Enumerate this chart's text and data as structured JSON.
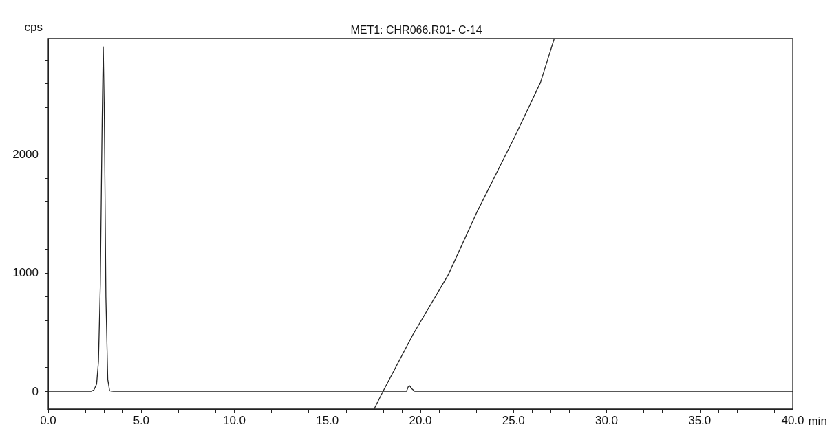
{
  "chart_data": {
    "type": "line",
    "title": "MET1: CHR066.R01- C-14",
    "xlabel": "min",
    "ylabel": "cps",
    "series": [
      {
        "color": "#222222",
        "x": [
          0,
          2.3,
          2.45,
          2.6,
          2.7,
          2.8,
          2.9,
          2.96,
          3.02,
          3.1,
          3.2,
          3.3,
          3.5,
          19.25,
          19.35,
          19.42,
          19.55,
          19.7,
          40
        ],
        "values": [
          0,
          0,
          10,
          60,
          250,
          900,
          2300,
          2910,
          2300,
          800,
          100,
          5,
          0,
          0,
          40,
          46,
          20,
          0,
          0
        ]
      },
      {
        "color": "#222222",
        "x": [
          17.51,
          17.99,
          19.6,
          21.5,
          23.05,
          25.05,
          26.45,
          27.19
        ],
        "values": [
          -150,
          0,
          480,
          986,
          1519,
          2145,
          2609,
          2980
        ]
      }
    ],
    "xlim": [
      0,
      40
    ],
    "ylim": [
      -150,
      2980
    ],
    "xticks": [
      {
        "value": 0,
        "label": "0.0"
      },
      {
        "value": 1,
        "label": null
      },
      {
        "value": 2,
        "label": null
      },
      {
        "value": 3,
        "label": null
      },
      {
        "value": 4,
        "label": null
      },
      {
        "value": 5,
        "label": "5.0"
      },
      {
        "value": 6,
        "label": null
      },
      {
        "value": 7,
        "label": null
      },
      {
        "value": 8,
        "label": null
      },
      {
        "value": 9,
        "label": null
      },
      {
        "value": 10,
        "label": "10.0"
      },
      {
        "value": 11,
        "label": null
      },
      {
        "value": 12,
        "label": null
      },
      {
        "value": 13,
        "label": null
      },
      {
        "value": 14,
        "label": null
      },
      {
        "value": 15,
        "label": "15.0"
      },
      {
        "value": 16,
        "label": null
      },
      {
        "value": 17,
        "label": null
      },
      {
        "value": 18,
        "label": null
      },
      {
        "value": 19,
        "label": null
      },
      {
        "value": 20,
        "label": "20.0"
      },
      {
        "value": 21,
        "label": null
      },
      {
        "value": 22,
        "label": null
      },
      {
        "value": 23,
        "label": null
      },
      {
        "value": 24,
        "label": null
      },
      {
        "value": 25,
        "label": "25.0"
      },
      {
        "value": 26,
        "label": null
      },
      {
        "value": 27,
        "label": null
      },
      {
        "value": 28,
        "label": null
      },
      {
        "value": 29,
        "label": null
      },
      {
        "value": 30,
        "label": "30.0"
      },
      {
        "value": 31,
        "label": null
      },
      {
        "value": 32,
        "label": null
      },
      {
        "value": 33,
        "label": null
      },
      {
        "value": 34,
        "label": null
      },
      {
        "value": 35,
        "label": "35.0"
      },
      {
        "value": 36,
        "label": null
      },
      {
        "value": 37,
        "label": null
      },
      {
        "value": 38,
        "label": null
      },
      {
        "value": 39,
        "label": null
      },
      {
        "value": 40,
        "label": "40.0"
      }
    ],
    "yticks": [
      0,
      {
        "value": 200,
        "label": null
      },
      {
        "value": 400,
        "label": null
      },
      {
        "value": 600,
        "label": null
      },
      {
        "value": 800,
        "label": null
      },
      1000,
      {
        "value": 1200,
        "label": null
      },
      {
        "value": 1400,
        "label": null
      },
      {
        "value": 1600,
        "label": null
      },
      {
        "value": 1800,
        "label": null
      },
      2000,
      {
        "value": 2200,
        "label": null
      },
      {
        "value": 2400,
        "label": null
      },
      {
        "value": 2600,
        "label": null
      },
      {
        "value": 2800,
        "label": null
      }
    ],
    "grid": false,
    "marker": "none",
    "line_style": "solid"
  }
}
